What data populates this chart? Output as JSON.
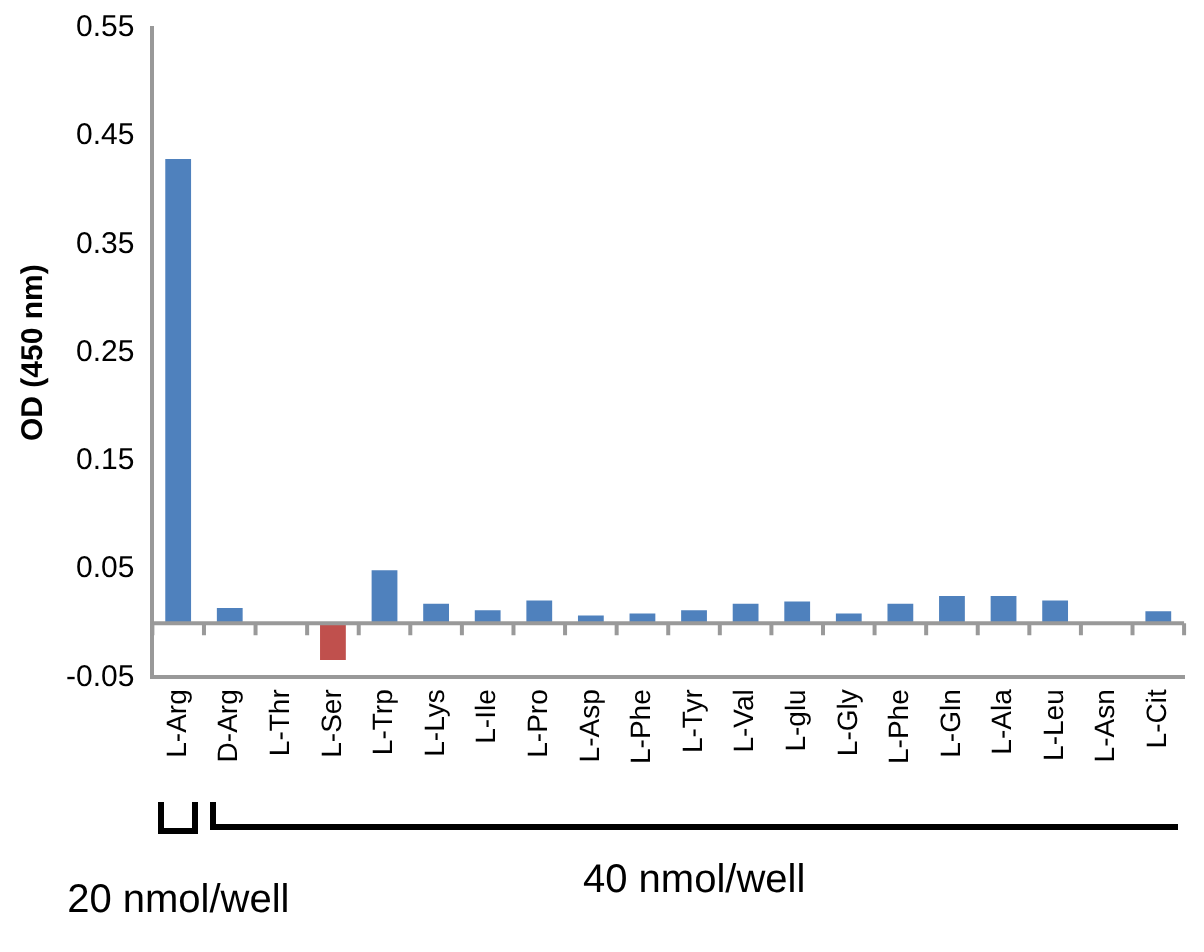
{
  "chart_data": {
    "type": "bar",
    "ylabel": "OD (450 nm)",
    "categories": [
      "L-Arg",
      "D-Arg",
      "L-Thr",
      "L-Ser",
      "L-Trp",
      "L-Lys",
      "L-Ile",
      "L-Pro",
      "L-Asp",
      "L-Phe",
      "L-Tyr",
      "L-Val",
      "L-glu",
      "L-Gly",
      "L-Phe",
      "L-Gln",
      "L-Ala",
      "L-Leu",
      "L-Asn",
      "L-Cit"
    ],
    "values": [
      0.429,
      0.014,
      0.001,
      -0.034,
      0.049,
      0.018,
      0.012,
      0.021,
      0.007,
      0.009,
      0.012,
      0.018,
      0.02,
      0.009,
      0.018,
      0.025,
      0.025,
      0.021,
      0,
      0.011
    ],
    "colors": [
      "#4f81bd",
      "#4f81bd",
      "#4f81bd",
      "#c0504d",
      "#4f81bd",
      "#4f81bd",
      "#4f81bd",
      "#4f81bd",
      "#4f81bd",
      "#4f81bd",
      "#4f81bd",
      "#4f81bd",
      "#4f81bd",
      "#4f81bd",
      "#4f81bd",
      "#4f81bd",
      "#4f81bd",
      "#4f81bd",
      "#4f81bd",
      "#4f81bd"
    ],
    "ylim": [
      -0.05,
      0.55
    ],
    "yticks": [
      -0.05,
      0.05,
      0.15,
      0.25,
      0.35,
      0.45,
      0.55
    ],
    "ref_lines": [
      {
        "axis": "y",
        "value": 0,
        "color": "#999999"
      }
    ],
    "annotations": [
      "20 nmol/well",
      "40 nmol/well"
    ],
    "grid": false,
    "legend": false
  }
}
